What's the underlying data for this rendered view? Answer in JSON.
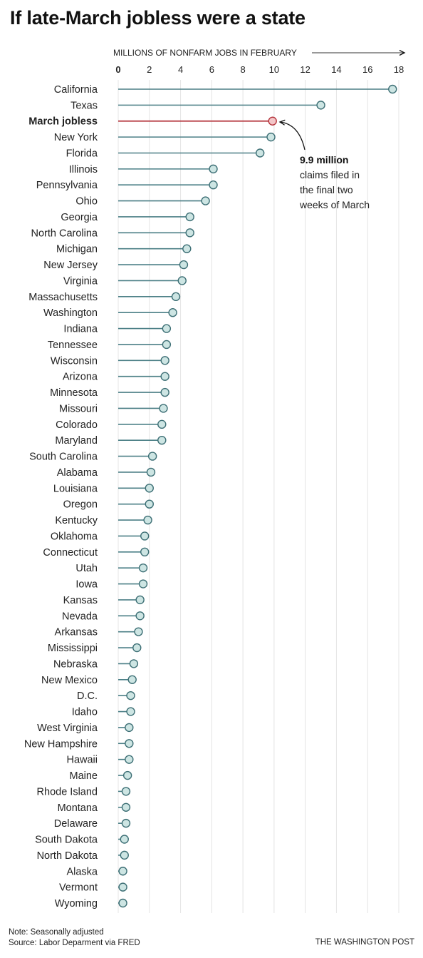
{
  "title": "If late-March jobless were a state",
  "chart_data": {
    "type": "dot",
    "xlabel": "MILLIONS OF NONFARM JOBS IN FEBRUARY",
    "xlim": [
      0,
      18
    ],
    "xticks": [
      "0",
      "2",
      "4",
      "6",
      "8",
      "10",
      "12",
      "14",
      "16",
      "18"
    ],
    "grid": true,
    "colors": {
      "stem": "#4b7f86",
      "dot_fill": "#cde5e3",
      "dot_stroke": "#3d6f75",
      "highlight_stem": "#b5343c",
      "highlight_fill": "#f3c6c8",
      "highlight_stroke": "#b5343c"
    },
    "highlight": "March jobless",
    "annotation": {
      "bold": "9.9 million",
      "lines": [
        "claims filed in",
        "the final two",
        "weeks of March"
      ]
    },
    "categories": [
      "California",
      "Texas",
      "March jobless",
      "New York",
      "Florida",
      "Illinois",
      "Pennsylvania",
      "Ohio",
      "Georgia",
      "North Carolina",
      "Michigan",
      "New Jersey",
      "Virginia",
      "Massachusetts",
      "Washington",
      "Indiana",
      "Tennessee",
      "Wisconsin",
      "Arizona",
      "Minnesota",
      "Missouri",
      "Colorado",
      "Maryland",
      "South Carolina",
      "Alabama",
      "Louisiana",
      "Oregon",
      "Kentucky",
      "Oklahoma",
      "Connecticut",
      "Utah",
      "Iowa",
      "Kansas",
      "Nevada",
      "Arkansas",
      "Mississippi",
      "Nebraska",
      "New Mexico",
      "D.C.",
      "Idaho",
      "West Virginia",
      "New Hampshire",
      "Hawaii",
      "Maine",
      "Rhode Island",
      "Montana",
      "Delaware",
      "South Dakota",
      "North Dakota",
      "Alaska",
      "Vermont",
      "Wyoming"
    ],
    "values": [
      17.6,
      13.0,
      9.9,
      9.8,
      9.1,
      6.1,
      6.1,
      5.6,
      4.6,
      4.6,
      4.4,
      4.2,
      4.1,
      3.7,
      3.5,
      3.1,
      3.1,
      3.0,
      3.0,
      3.0,
      2.9,
      2.8,
      2.8,
      2.2,
      2.1,
      2.0,
      2.0,
      1.9,
      1.7,
      1.7,
      1.6,
      1.6,
      1.4,
      1.4,
      1.3,
      1.2,
      1.0,
      0.9,
      0.8,
      0.8,
      0.7,
      0.7,
      0.7,
      0.6,
      0.5,
      0.5,
      0.5,
      0.4,
      0.4,
      0.3,
      0.3,
      0.3
    ]
  },
  "footer": {
    "note": "Note: Seasonally adjusted",
    "source": "Source: Labor Deparment via FRED",
    "credit": "THE WASHINGTON POST"
  }
}
